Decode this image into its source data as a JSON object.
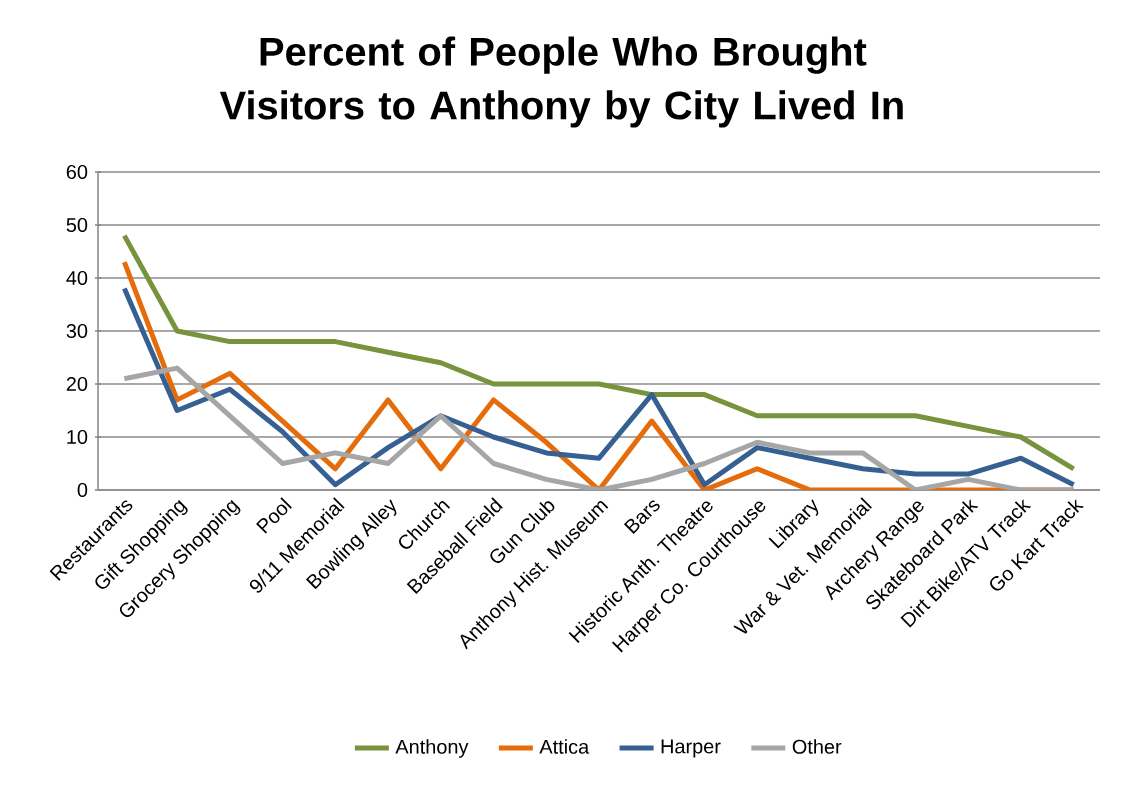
{
  "chart_data": {
    "type": "line",
    "title": "Percent of People Who Brought Visitors to Anthony by City Lived In",
    "categories": [
      "Restaurants",
      "Gift Shopping",
      "Grocery Shopping",
      "Pool",
      "9/11 Memorial",
      "Bowling Alley",
      "Church",
      "Baseball Field",
      "Gun Club",
      "Anthony Hist. Museum",
      "Bars",
      "Historic Anth. Theatre",
      "Harper Co. Courthouse",
      "Library",
      "War & Vet. Memorial",
      "Archery Range",
      "Skateboard Park",
      "Dirt Bike/ATV Track",
      "Go Kart Track"
    ],
    "series": [
      {
        "name": "Anthony",
        "color": "#77933c",
        "values": [
          48,
          30,
          28,
          28,
          28,
          26,
          24,
          20,
          20,
          20,
          18,
          18,
          14,
          14,
          14,
          14,
          12,
          10,
          4
        ]
      },
      {
        "name": "Attica",
        "color": "#e46c0a",
        "values": [
          43,
          17,
          22,
          13,
          4,
          17,
          4,
          17,
          9,
          0,
          13,
          0,
          4,
          0,
          0,
          0,
          0,
          0,
          0
        ]
      },
      {
        "name": "Harper",
        "color": "#376092",
        "values": [
          38,
          15,
          19,
          11,
          1,
          8,
          14,
          10,
          7,
          6,
          18,
          1,
          8,
          6,
          4,
          3,
          3,
          6,
          1
        ]
      },
      {
        "name": "Other",
        "color": "#a6a6a6",
        "values": [
          21,
          23,
          14,
          5,
          7,
          5,
          14,
          5,
          2,
          0,
          2,
          5,
          9,
          7,
          7,
          0,
          2,
          0,
          0
        ]
      }
    ],
    "ylim": [
      0,
      60
    ],
    "yticks": [
      0,
      10,
      20,
      30,
      40,
      50,
      60
    ],
    "grid": "y",
    "legend": "bottom",
    "marker": "none",
    "line_style": "solid"
  }
}
